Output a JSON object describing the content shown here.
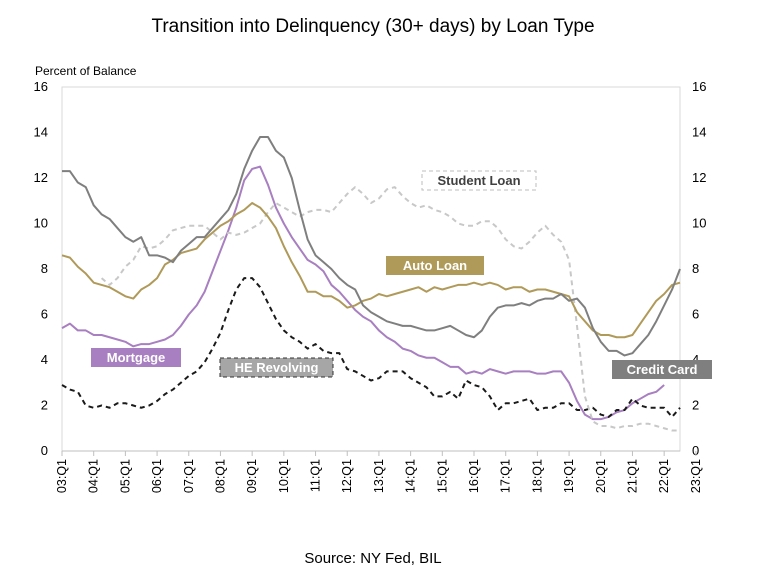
{
  "chart_data": {
    "type": "line",
    "title": "Transition into Delinquency (30+ days) by Loan Type",
    "ylabel": "Percent of Balance",
    "source": "Source: NY Fed, BIL",
    "ylim": [
      0,
      16
    ],
    "yticks": [
      "0",
      "2",
      "4",
      "6",
      "8",
      "10",
      "12",
      "14",
      "16"
    ],
    "grid": false,
    "x_tick_labels": [
      "03:Q1",
      "04:Q1",
      "05:Q1",
      "06:Q1",
      "07:Q1",
      "08:Q1",
      "09:Q1",
      "10:Q1",
      "11:Q1",
      "12:Q1",
      "13:Q1",
      "14:Q1",
      "15:Q1",
      "16:Q1",
      "17:Q1",
      "18:Q1",
      "19:Q1",
      "20:Q1",
      "21:Q1",
      "22:Q1",
      "23:Q1"
    ],
    "x_start_year": 2003,
    "series": [
      {
        "name": "Mortgage",
        "color": "#a87fc0",
        "dash": "solid",
        "label_box": "filled",
        "values": [
          5.4,
          5.6,
          5.3,
          5.3,
          5.1,
          5.1,
          5.0,
          4.9,
          4.8,
          4.6,
          4.7,
          4.7,
          4.8,
          4.9,
          5.1,
          5.5,
          6.0,
          6.4,
          7.0,
          7.9,
          8.8,
          9.7,
          10.7,
          11.9,
          12.4,
          12.5,
          11.7,
          10.7,
          10.0,
          9.4,
          8.9,
          8.4,
          8.2,
          7.9,
          7.3,
          7.0,
          6.6,
          6.2,
          5.9,
          5.7,
          5.3,
          5.0,
          4.8,
          4.5,
          4.4,
          4.2,
          4.1,
          4.1,
          3.9,
          3.7,
          3.7,
          3.4,
          3.5,
          3.4,
          3.6,
          3.5,
          3.4,
          3.5,
          3.5,
          3.5,
          3.4,
          3.4,
          3.5,
          3.5,
          3.0,
          2.2,
          1.6,
          1.4,
          1.4,
          1.5,
          1.7,
          1.8,
          2.1,
          2.3,
          2.5,
          2.6,
          2.9
        ]
      },
      {
        "name": "HE Revolving",
        "color": "#1a1a1a",
        "dash": "dashed",
        "label_box": "dashed",
        "values": [
          2.9,
          2.7,
          2.6,
          2.0,
          1.9,
          2.0,
          1.9,
          2.1,
          2.1,
          2.0,
          1.9,
          2.0,
          2.2,
          2.5,
          2.7,
          3.0,
          3.3,
          3.5,
          3.9,
          4.5,
          5.2,
          6.2,
          7.1,
          7.6,
          7.6,
          7.2,
          6.5,
          5.8,
          5.3,
          5.0,
          4.8,
          4.5,
          4.7,
          4.4,
          4.3,
          4.3,
          3.6,
          3.5,
          3.3,
          3.1,
          3.2,
          3.5,
          3.5,
          3.5,
          3.2,
          3.0,
          2.8,
          2.4,
          2.4,
          2.6,
          2.3,
          3.1,
          2.9,
          2.8,
          2.4,
          1.8,
          2.1,
          2.1,
          2.2,
          2.3,
          1.8,
          1.9,
          1.9,
          2.1,
          2.1,
          1.8,
          1.8,
          1.9,
          1.6,
          1.5,
          1.8,
          1.8,
          2.3,
          2.0,
          1.9,
          1.9,
          1.9,
          1.5,
          1.9
        ]
      },
      {
        "name": "Student Loan",
        "color": "#c8c8c8",
        "dash": "dashed",
        "label_box": "dashed",
        "values": [
          null,
          null,
          null,
          null,
          null,
          7.6,
          7.3,
          7.6,
          8.1,
          8.4,
          9.0,
          8.9,
          9.0,
          9.3,
          9.7,
          9.8,
          9.9,
          9.9,
          9.9,
          9.6,
          9.3,
          9.6,
          9.5,
          9.6,
          9.8,
          10.0,
          10.5,
          10.9,
          10.7,
          10.5,
          10.3,
          10.5,
          10.6,
          10.6,
          10.5,
          10.9,
          11.3,
          11.6,
          11.3,
          10.9,
          11.1,
          11.5,
          11.6,
          11.2,
          10.9,
          10.7,
          10.8,
          10.6,
          10.5,
          10.3,
          10.0,
          9.9,
          9.9,
          10.1,
          10.1,
          9.8,
          9.3,
          9.0,
          8.9,
          9.2,
          9.6,
          9.9,
          9.5,
          9.2,
          8.4,
          5.5,
          2.4,
          1.3,
          1.1,
          1.1,
          1.0,
          1.1,
          1.1,
          1.2,
          1.2,
          1.1,
          1.0,
          0.9,
          0.9
        ]
      },
      {
        "name": "Auto Loan",
        "color": "#b09a5a",
        "dash": "solid",
        "label_box": "filled",
        "values": [
          8.6,
          8.5,
          8.1,
          7.8,
          7.4,
          7.3,
          7.2,
          7.0,
          6.8,
          6.7,
          7.1,
          7.3,
          7.6,
          8.2,
          8.4,
          8.7,
          8.8,
          8.9,
          9.3,
          9.6,
          9.9,
          10.1,
          10.4,
          10.6,
          10.9,
          10.7,
          10.3,
          9.8,
          9.0,
          8.3,
          7.7,
          7.0,
          7.0,
          6.8,
          6.8,
          6.6,
          6.3,
          6.4,
          6.6,
          6.7,
          6.9,
          6.8,
          6.9,
          7.0,
          7.1,
          7.2,
          7.0,
          7.2,
          7.1,
          7.2,
          7.3,
          7.3,
          7.4,
          7.3,
          7.4,
          7.3,
          7.1,
          7.2,
          7.2,
          7.0,
          7.1,
          7.1,
          7.0,
          6.9,
          6.8,
          6.1,
          5.7,
          5.3,
          5.1,
          5.1,
          5.0,
          5.0,
          5.1,
          5.6,
          6.1,
          6.6,
          6.9,
          7.3,
          7.4
        ]
      },
      {
        "name": "Credit Card",
        "color": "#7f7f7f",
        "dash": "solid",
        "label_box": "filled",
        "values": [
          12.3,
          12.3,
          11.8,
          11.6,
          10.8,
          10.4,
          10.2,
          9.8,
          9.4,
          9.2,
          9.4,
          8.6,
          8.6,
          8.5,
          8.3,
          8.8,
          9.1,
          9.4,
          9.4,
          9.8,
          10.2,
          10.6,
          11.3,
          12.4,
          13.2,
          13.8,
          13.8,
          13.2,
          12.9,
          12.0,
          10.6,
          9.3,
          8.6,
          8.3,
          8.0,
          7.6,
          7.3,
          7.1,
          6.4,
          6.1,
          5.9,
          5.7,
          5.6,
          5.5,
          5.5,
          5.4,
          5.3,
          5.3,
          5.4,
          5.5,
          5.3,
          5.1,
          5.0,
          5.3,
          5.9,
          6.3,
          6.4,
          6.4,
          6.5,
          6.4,
          6.6,
          6.7,
          6.7,
          6.9,
          6.6,
          6.7,
          6.3,
          5.4,
          4.8,
          4.4,
          4.4,
          4.2,
          4.3,
          4.7,
          5.1,
          5.7,
          6.4,
          7.1,
          8.0
        ]
      }
    ],
    "series_labels": {
      "Mortgage": "Mortgage",
      "HE Revolving": "HE Revolving",
      "Student Loan": "Student Loan",
      "Auto Loan": "Auto Loan",
      "Credit Card": "Credit Card"
    }
  }
}
